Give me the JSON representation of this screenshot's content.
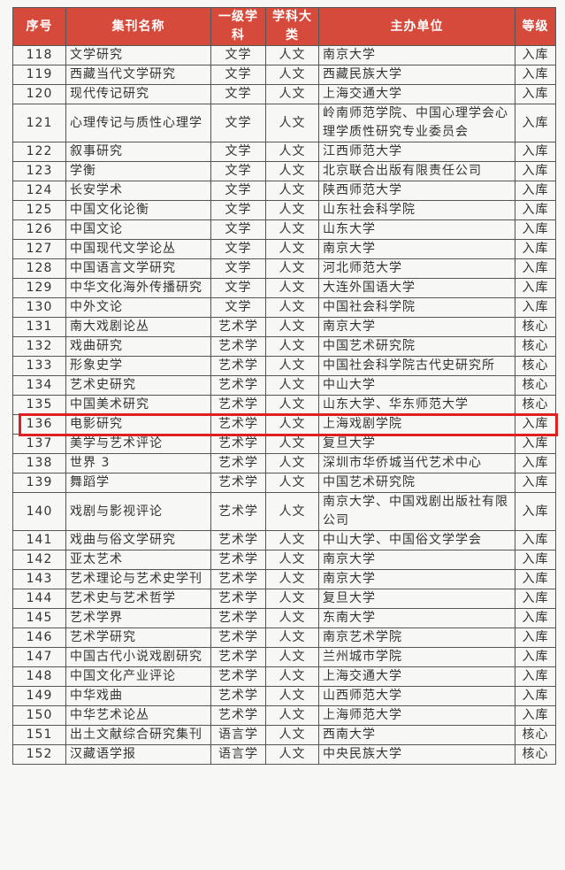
{
  "table": {
    "header": [
      "序号",
      "集刊名称",
      "一级学科",
      "学科大类",
      "主办单位",
      "等级"
    ],
    "rows": [
      [
        "118",
        "文学研究",
        "文学",
        "人文",
        "南京大学",
        "入库"
      ],
      [
        "119",
        "西藏当代文学研究",
        "文学",
        "人文",
        "西藏民族大学",
        "入库"
      ],
      [
        "120",
        "现代传记研究",
        "文学",
        "人文",
        "上海交通大学",
        "入库"
      ],
      [
        "121",
        "心理传记与质性心理学",
        "文学",
        "人文",
        "岭南师范学院、中国心理学会心理学质性研究专业委员会",
        "入库"
      ],
      [
        "122",
        "叙事研究",
        "文学",
        "人文",
        "江西师范大学",
        "入库"
      ],
      [
        "123",
        "学衡",
        "文学",
        "人文",
        "北京联合出版有限责任公司",
        "入库"
      ],
      [
        "124",
        "长安学术",
        "文学",
        "人文",
        "陕西师范大学",
        "入库"
      ],
      [
        "125",
        "中国文化论衡",
        "文学",
        "人文",
        "山东社会科学院",
        "入库"
      ],
      [
        "126",
        "中国文论",
        "文学",
        "人文",
        "山东大学",
        "入库"
      ],
      [
        "127",
        "中国现代文学论丛",
        "文学",
        "人文",
        "南京大学",
        "入库"
      ],
      [
        "128",
        "中国语言文学研究",
        "文学",
        "人文",
        "河北师范大学",
        "入库"
      ],
      [
        "129",
        "中华文化海外传播研究",
        "文学",
        "人文",
        "大连外国语大学",
        "入库"
      ],
      [
        "130",
        "中外文论",
        "文学",
        "人文",
        "中国社会科学院",
        "入库"
      ],
      [
        "131",
        "南大戏剧论丛",
        "艺术学",
        "人文",
        "南京大学",
        "核心"
      ],
      [
        "132",
        "戏曲研究",
        "艺术学",
        "人文",
        "中国艺术研究院",
        "核心"
      ],
      [
        "133",
        "形象史学",
        "艺术学",
        "人文",
        "中国社会科学院古代史研究所",
        "核心"
      ],
      [
        "134",
        "艺术史研究",
        "艺术学",
        "人文",
        "中山大学",
        "核心"
      ],
      [
        "135",
        "中国美术研究",
        "艺术学",
        "人文",
        "山东大学、华东师范大学",
        "核心"
      ],
      [
        "136",
        "电影研究",
        "艺术学",
        "人文",
        "上海戏剧学院",
        "入库"
      ],
      [
        "137",
        "美学与艺术评论",
        "艺术学",
        "人文",
        "复旦大学",
        "入库"
      ],
      [
        "138",
        "世界 3",
        "艺术学",
        "人文",
        "深圳市华侨城当代艺术中心",
        "入库"
      ],
      [
        "139",
        "舞蹈学",
        "艺术学",
        "人文",
        "中国艺术研究院",
        "入库"
      ],
      [
        "140",
        "戏剧与影视评论",
        "艺术学",
        "人文",
        "南京大学、中国戏剧出版社有限公司",
        "入库"
      ],
      [
        "141",
        "戏曲与俗文学研究",
        "艺术学",
        "人文",
        "中山大学、中国俗文学学会",
        "入库"
      ],
      [
        "142",
        "亚太艺术",
        "艺术学",
        "人文",
        "南京大学",
        "入库"
      ],
      [
        "143",
        "艺术理论与艺术史学刊",
        "艺术学",
        "人文",
        "南京大学",
        "入库"
      ],
      [
        "144",
        "艺术史与艺术哲学",
        "艺术学",
        "人文",
        "复旦大学",
        "入库"
      ],
      [
        "145",
        "艺术学界",
        "艺术学",
        "人文",
        "东南大学",
        "入库"
      ],
      [
        "146",
        "艺术学研究",
        "艺术学",
        "人文",
        "南京艺术学院",
        "入库"
      ],
      [
        "147",
        "中国古代小说戏剧研究",
        "艺术学",
        "人文",
        "兰州城市学院",
        "入库"
      ],
      [
        "148",
        "中国文化产业评论",
        "艺术学",
        "人文",
        "上海交通大学",
        "入库"
      ],
      [
        "149",
        "中华戏曲",
        "艺术学",
        "人文",
        "山西师范大学",
        "入库"
      ],
      [
        "150",
        "中华艺术论丛",
        "艺术学",
        "人文",
        "上海师范大学",
        "入库"
      ],
      [
        "151",
        "出土文献综合研究集刊",
        "语言学",
        "人文",
        "西南大学",
        "核心"
      ],
      [
        "152",
        "汉藏语学报",
        "语言学",
        "人文",
        "中央民族大学",
        "核心"
      ]
    ]
  }
}
